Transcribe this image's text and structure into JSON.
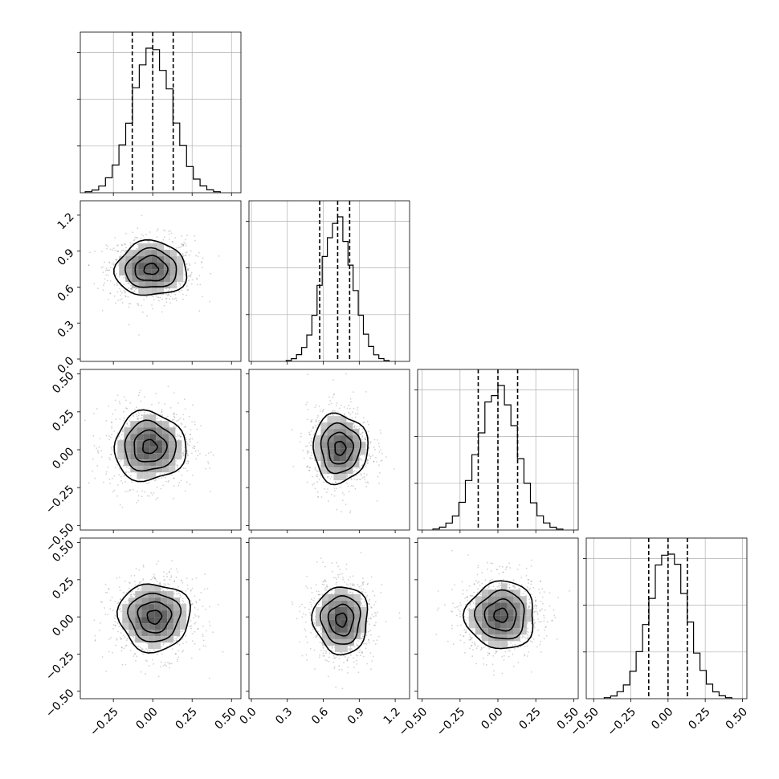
{
  "chart_data": {
    "type": "corner",
    "parameters": 4,
    "grid": true,
    "quantiles": [
      0.16,
      0.5,
      0.84
    ],
    "ranges": [
      [
        -0.46,
        0.56
      ],
      [
        -0.02,
        1.32
      ],
      [
        -0.53,
        0.53
      ],
      [
        -0.55,
        0.53
      ]
    ],
    "ticks": [
      [
        -0.25,
        0.0,
        0.25,
        0.5
      ],
      [
        0.0,
        0.3,
        0.6,
        0.9,
        1.2
      ],
      [
        -0.5,
        -0.25,
        0.0,
        0.25,
        0.5
      ],
      [
        -0.5,
        -0.25,
        0.0,
        0.25,
        0.5
      ]
    ],
    "tick_labels": [
      [
        "−0.25",
        "0.00",
        "0.25",
        "0.50"
      ],
      [
        "0.0",
        "0.3",
        "0.6",
        "0.9",
        "1.2"
      ],
      [
        "−0.50",
        "−0.25",
        "0.00",
        "0.25",
        "0.50"
      ],
      [
        "−0.50",
        "−0.25",
        "0.00",
        "0.25",
        "0.50"
      ]
    ],
    "marginals": [
      {
        "param": 0,
        "mean": 0.0,
        "sd": 0.13,
        "quantile_values": [
          -0.13,
          0.0,
          0.13
        ]
      },
      {
        "param": 1,
        "mean": 0.72,
        "sd": 0.13,
        "quantile_values": [
          0.57,
          0.72,
          0.82
        ]
      },
      {
        "param": 2,
        "mean": 0.0,
        "sd": 0.13,
        "quantile_values": [
          -0.13,
          0.0,
          0.13
        ]
      },
      {
        "param": 3,
        "mean": 0.0,
        "sd": 0.13,
        "quantile_values": [
          -0.13,
          0.0,
          0.13
        ]
      }
    ],
    "joint_panels": [
      {
        "x": 0,
        "y": 1,
        "center": [
          -0.01,
          0.75
        ]
      },
      {
        "x": 0,
        "y": 2,
        "center": [
          -0.02,
          0.02
        ]
      },
      {
        "x": 1,
        "y": 2,
        "center": [
          0.74,
          0.01
        ]
      },
      {
        "x": 0,
        "y": 3,
        "center": [
          0.01,
          0.0
        ]
      },
      {
        "x": 1,
        "y": 3,
        "center": [
          0.75,
          -0.02
        ]
      },
      {
        "x": 2,
        "y": 3,
        "center": [
          0.02,
          0.01
        ]
      }
    ]
  }
}
